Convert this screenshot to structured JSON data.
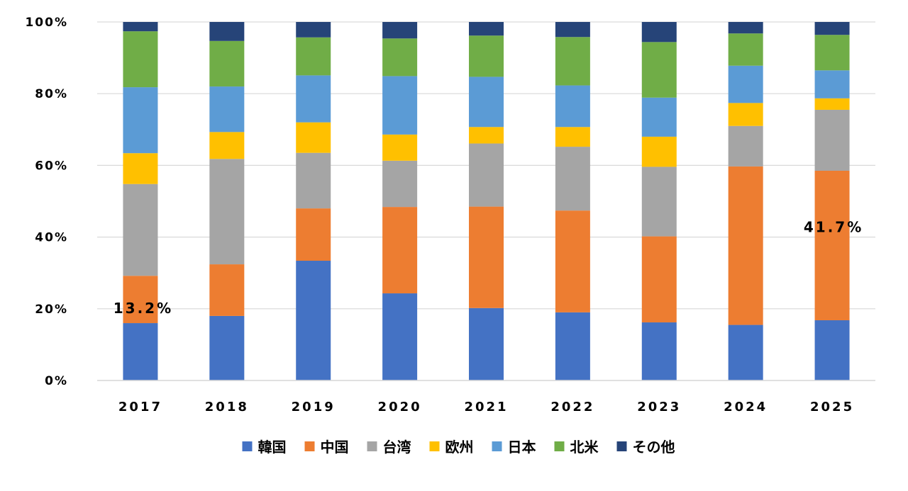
{
  "chart_data": {
    "type": "bar",
    "stacked": true,
    "percent_stacked": true,
    "title": "",
    "xlabel": "",
    "ylabel": "",
    "ylim": [
      0,
      100
    ],
    "ytick_labels": [
      "0%",
      "20%",
      "40%",
      "60%",
      "80%",
      "100%"
    ],
    "ytick_values": [
      0,
      20,
      40,
      60,
      80,
      100
    ],
    "grid": true,
    "legend_position": "bottom",
    "categories": [
      "2017",
      "2018",
      "2019",
      "2020",
      "2021",
      "2022",
      "2023",
      "2024",
      "2025"
    ],
    "series": [
      {
        "name": "韓国",
        "color": "#4472C4",
        "values": [
          16.0,
          18.0,
          33.4,
          24.3,
          20.2,
          19.0,
          16.2,
          15.5,
          16.8
        ]
      },
      {
        "name": "中国",
        "color": "#ED7D31",
        "values": [
          13.2,
          14.4,
          14.6,
          24.1,
          28.3,
          28.4,
          24.0,
          44.2,
          41.7
        ]
      },
      {
        "name": "台湾",
        "color": "#A5A5A5",
        "values": [
          25.6,
          29.4,
          15.5,
          12.9,
          17.6,
          17.8,
          19.4,
          11.3,
          17.0
        ]
      },
      {
        "name": "欧州",
        "color": "#FFC000",
        "values": [
          8.6,
          7.5,
          8.5,
          7.3,
          4.6,
          5.5,
          8.4,
          6.4,
          3.2
        ]
      },
      {
        "name": "日本",
        "color": "#5B9BD5",
        "values": [
          18.4,
          12.7,
          13.1,
          16.3,
          14.0,
          11.6,
          10.9,
          10.4,
          7.8
        ]
      },
      {
        "name": "北米",
        "color": "#70AD47",
        "values": [
          15.6,
          12.7,
          10.6,
          10.5,
          11.5,
          13.5,
          15.5,
          9.0,
          9.9
        ]
      },
      {
        "name": "その他",
        "color": "#264478",
        "values": [
          2.6,
          5.3,
          4.3,
          4.6,
          3.8,
          4.2,
          5.6,
          3.2,
          3.6
        ]
      }
    ],
    "annotations": [
      {
        "text": "13.2%",
        "category": "2017",
        "series": "中国"
      },
      {
        "text": "41.7%",
        "category": "2025",
        "series": "中国"
      }
    ]
  }
}
